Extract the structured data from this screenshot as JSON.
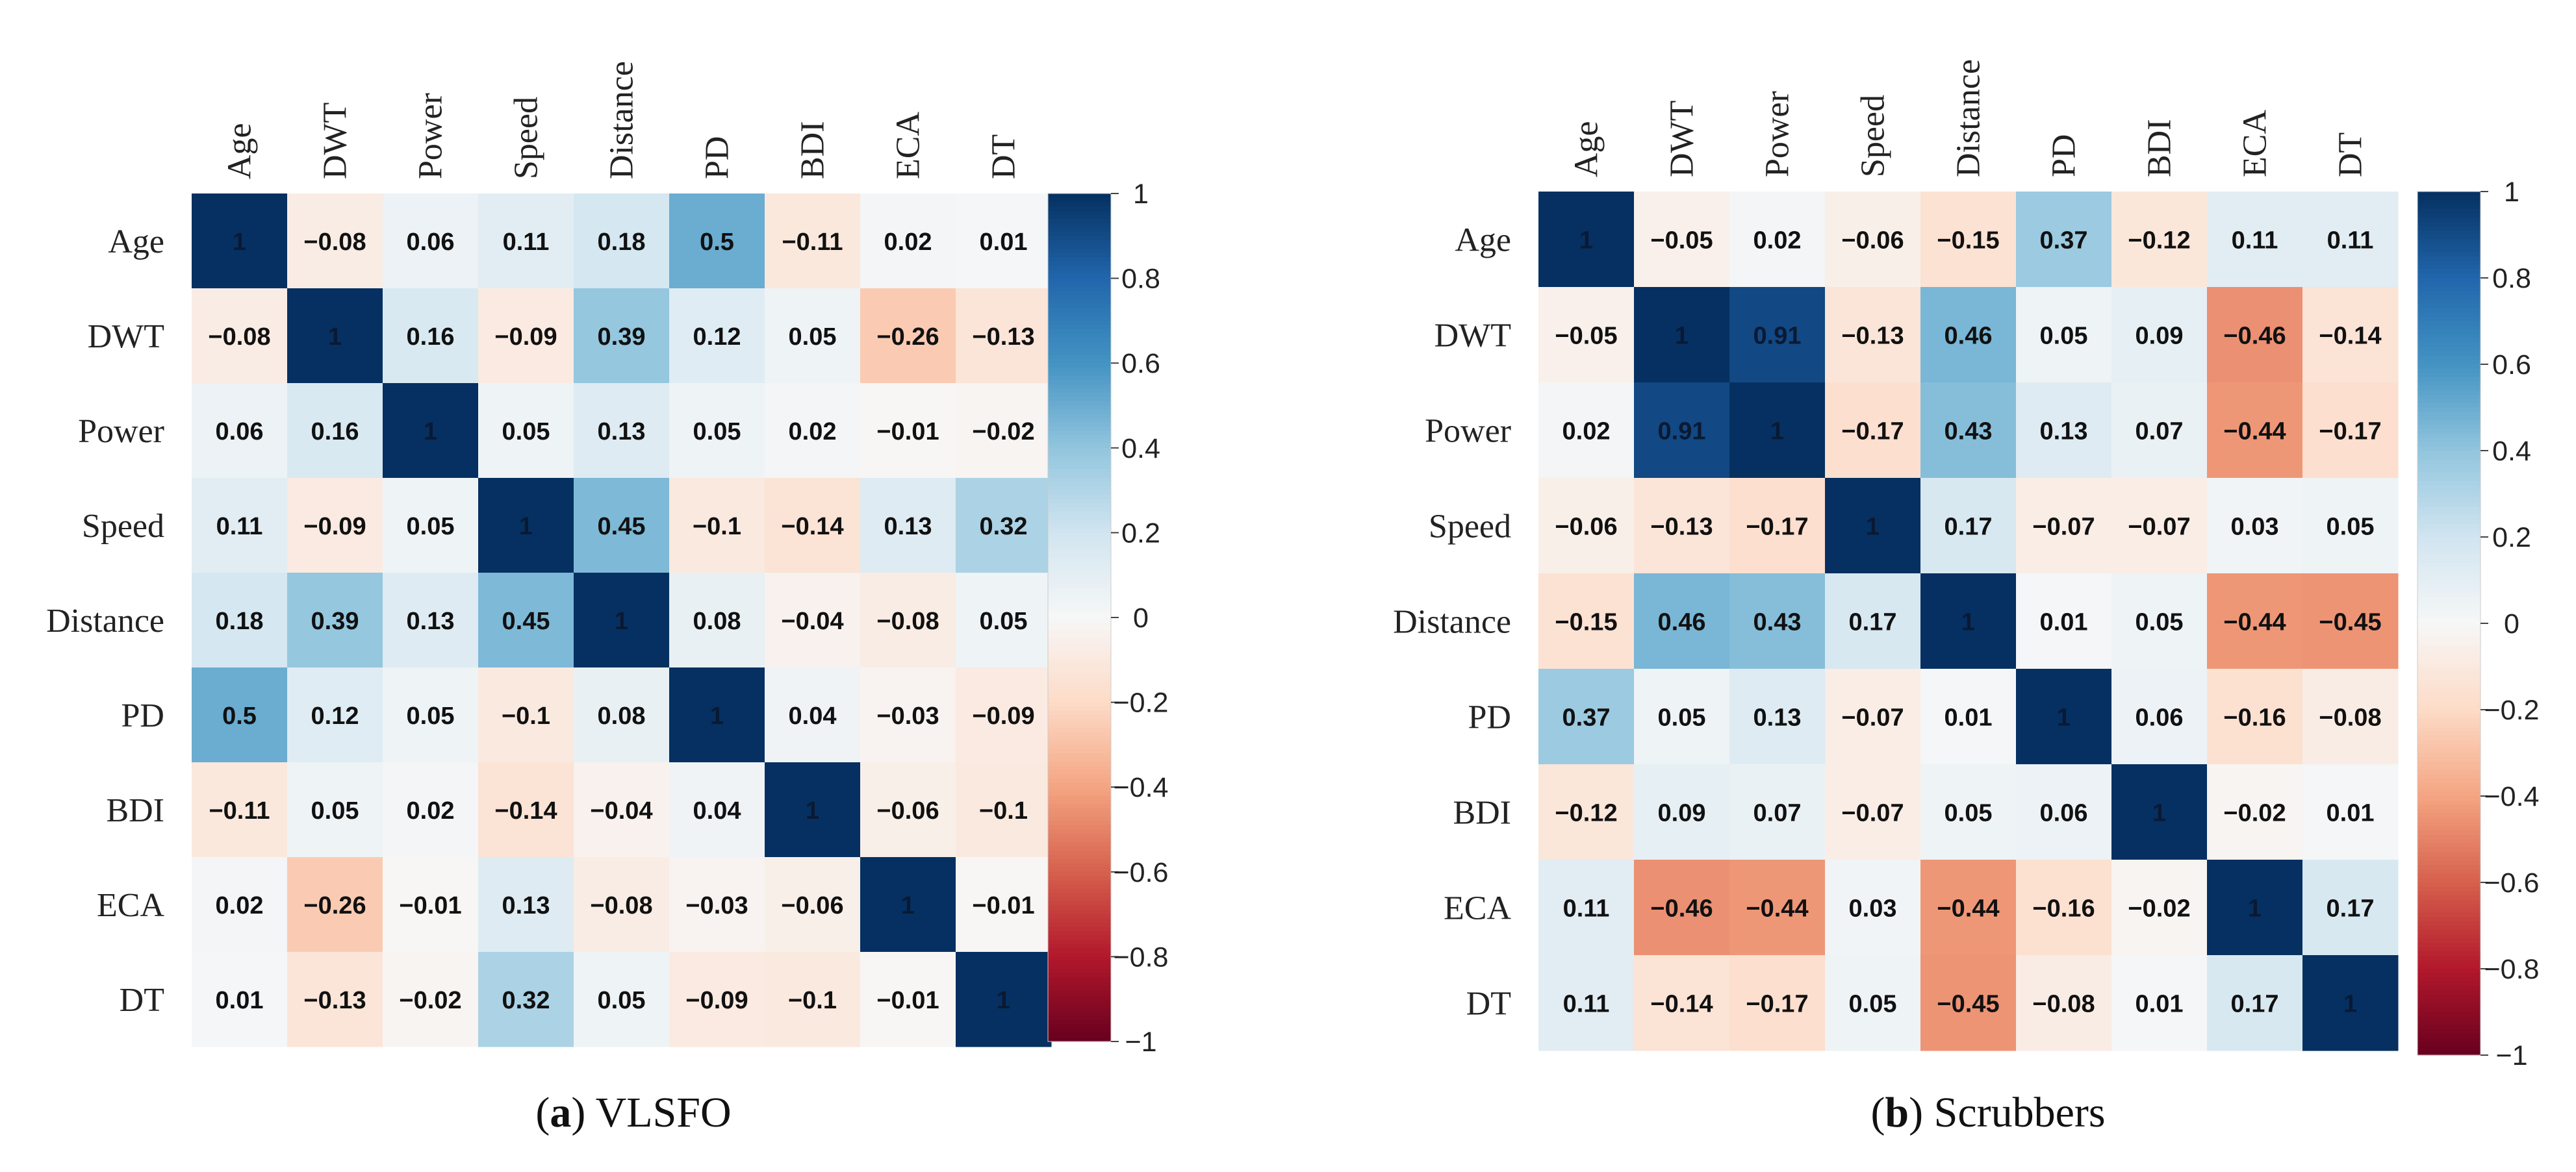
{
  "chart_data": [
    {
      "type": "heatmap",
      "title": "VLSFO",
      "caption_letter": "(a)",
      "caption_rest": " VLSFO",
      "variables": [
        "Age",
        "DWT",
        "Power",
        "Speed",
        "Distance",
        "PD",
        "BDI",
        "ECA",
        "DT"
      ],
      "matrix": [
        [
          1,
          -0.08,
          0.06,
          0.11,
          0.18,
          0.5,
          -0.11,
          0.02,
          0.01
        ],
        [
          -0.08,
          1,
          0.16,
          -0.09,
          0.39,
          0.12,
          0.05,
          -0.26,
          -0.13
        ],
        [
          0.06,
          0.16,
          1,
          0.05,
          0.13,
          0.05,
          0.02,
          -0.01,
          -0.02
        ],
        [
          0.11,
          -0.09,
          0.05,
          1,
          0.45,
          -0.1,
          -0.14,
          0.13,
          0.32
        ],
        [
          0.18,
          0.39,
          0.13,
          0.45,
          1,
          0.08,
          -0.04,
          -0.08,
          0.05
        ],
        [
          0.5,
          0.12,
          0.05,
          -0.1,
          0.08,
          1,
          0.04,
          -0.03,
          -0.09
        ],
        [
          -0.11,
          0.05,
          0.02,
          -0.14,
          -0.04,
          0.04,
          1,
          -0.06,
          -0.1
        ],
        [
          0.02,
          -0.26,
          -0.01,
          0.13,
          -0.08,
          -0.03,
          -0.06,
          1,
          -0.01
        ],
        [
          0.01,
          -0.13,
          -0.02,
          0.32,
          0.05,
          -0.09,
          -0.1,
          -0.01,
          1
        ]
      ],
      "colorbar_ticks": [
        "1",
        "0.8",
        "0.6",
        "0.4",
        "0.2",
        "0",
        "−0.2",
        "−0.4",
        "−0.6",
        "−0.8",
        "−1"
      ],
      "value_range": [
        -1,
        1
      ]
    },
    {
      "type": "heatmap",
      "title": "Scrubbers",
      "caption_letter": "(b)",
      "caption_rest": " Scrubbers",
      "variables": [
        "Age",
        "DWT",
        "Power",
        "Speed",
        "Distance",
        "PD",
        "BDI",
        "ECA",
        "DT"
      ],
      "matrix": [
        [
          1,
          -0.05,
          0.02,
          -0.06,
          -0.15,
          0.37,
          -0.12,
          0.11,
          0.11
        ],
        [
          -0.05,
          1,
          0.91,
          -0.13,
          0.46,
          0.05,
          0.09,
          -0.46,
          -0.14
        ],
        [
          0.02,
          0.91,
          1,
          -0.17,
          0.43,
          0.13,
          0.07,
          -0.44,
          -0.17
        ],
        [
          -0.06,
          -0.13,
          -0.17,
          1,
          0.17,
          -0.07,
          -0.07,
          0.03,
          0.05
        ],
        [
          -0.15,
          0.46,
          0.43,
          0.17,
          1,
          0.01,
          0.05,
          -0.44,
          -0.45
        ],
        [
          0.37,
          0.05,
          0.13,
          -0.07,
          0.01,
          1,
          0.06,
          -0.16,
          -0.08
        ],
        [
          -0.12,
          0.09,
          0.07,
          -0.07,
          0.05,
          0.06,
          1,
          -0.02,
          0.01
        ],
        [
          0.11,
          -0.46,
          -0.44,
          0.03,
          -0.44,
          -0.16,
          -0.02,
          1,
          0.17
        ],
        [
          0.11,
          -0.14,
          -0.17,
          0.05,
          -0.45,
          -0.08,
          0.01,
          0.17,
          1
        ]
      ],
      "colorbar_ticks": [
        "1",
        "0.8",
        "0.6",
        "0.4",
        "0.2",
        "0",
        "−0.2",
        "−0.4",
        "−0.6",
        "−0.8",
        "−1"
      ],
      "value_range": [
        -1,
        1
      ]
    }
  ],
  "colors": {
    "negative_end": "#67001f",
    "positive_end": "#053061",
    "zero": "#f7f7f7"
  }
}
